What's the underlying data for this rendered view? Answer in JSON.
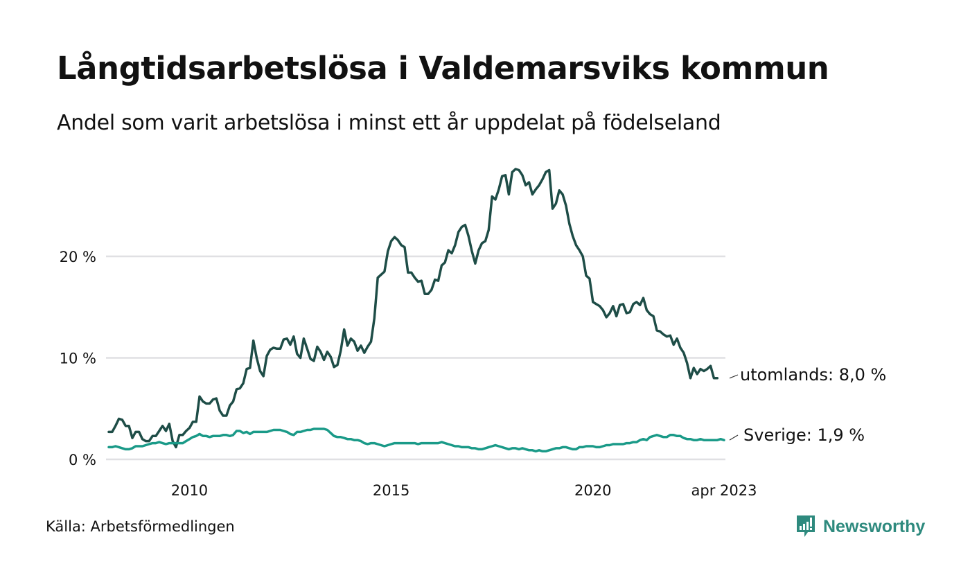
{
  "header": {
    "title": "Långtidsarbetslösa i Valdemarsviks kommun",
    "subtitle": "Andel som varit arbetslösa i minst ett år uppdelat på födelseland"
  },
  "footer": {
    "source": "Källa: Arbetsförmedlingen",
    "brand": "Newsworthy",
    "brand_icon": "newsworthy-chart-bubble-icon",
    "brand_color": "#2e8a7e"
  },
  "chart_data": {
    "type": "line",
    "title": "Långtidsarbetslösa i Valdemarsviks kommun",
    "subtitle": "Andel som varit arbetslösa i minst ett år uppdelat på födelseland",
    "xlabel": "",
    "ylabel": "",
    "x_start": "2008-01",
    "x_end": "2023-04",
    "x_frequency": "monthly",
    "x_ticks": [
      {
        "label": "2010",
        "value": 2010.0
      },
      {
        "label": "2015",
        "value": 2015.0
      },
      {
        "label": "2020",
        "value": 2020.0
      },
      {
        "label": "apr 2023",
        "value": 2023.25
      }
    ],
    "y_ticks": [
      {
        "label": "0 %",
        "value": 0
      },
      {
        "label": "10 %",
        "value": 10
      },
      {
        "label": "20 %",
        "value": 20
      }
    ],
    "ylim": [
      0,
      29
    ],
    "grid": true,
    "legend": "end-of-line labels (right)",
    "series": [
      {
        "name": "utomlands",
        "end_label": "utomlands: 8,0 %",
        "color": "#1e4d47",
        "values": [
          2.7,
          2.7,
          3.3,
          4.0,
          3.9,
          3.3,
          3.3,
          2.1,
          2.7,
          2.7,
          2.0,
          1.8,
          1.8,
          2.3,
          2.3,
          2.8,
          3.3,
          2.8,
          3.5,
          1.8,
          1.2,
          2.4,
          2.4,
          2.8,
          3.1,
          3.7,
          3.7,
          6.2,
          5.7,
          5.5,
          5.5,
          5.9,
          6.0,
          4.8,
          4.3,
          4.3,
          5.3,
          5.7,
          6.9,
          7.0,
          7.5,
          8.9,
          9.0,
          11.7,
          10.0,
          8.7,
          8.2,
          10.2,
          10.8,
          11.0,
          10.9,
          10.9,
          11.8,
          11.9,
          11.3,
          12.1,
          10.4,
          10.0,
          11.9,
          10.9,
          9.9,
          9.7,
          11.1,
          10.6,
          9.8,
          10.6,
          10.1,
          9.1,
          9.3,
          10.7,
          12.8,
          11.2,
          11.9,
          11.6,
          10.7,
          11.2,
          10.5,
          11.1,
          11.6,
          13.9,
          17.9,
          18.2,
          18.5,
          20.5,
          21.5,
          21.9,
          21.6,
          21.1,
          20.9,
          18.4,
          18.4,
          17.9,
          17.5,
          17.6,
          16.3,
          16.3,
          16.7,
          17.7,
          17.6,
          19.1,
          19.4,
          20.6,
          20.3,
          21.1,
          22.4,
          22.9,
          23.1,
          22.0,
          20.5,
          19.3,
          20.6,
          21.3,
          21.5,
          22.6,
          25.9,
          25.6,
          26.6,
          27.9,
          28.0,
          26.1,
          28.3,
          28.6,
          28.5,
          28.0,
          27.0,
          27.3,
          26.1,
          26.6,
          27.0,
          27.6,
          28.3,
          28.5,
          24.7,
          25.2,
          26.5,
          26.1,
          25.0,
          23.2,
          22.0,
          21.1,
          20.6,
          20.0,
          18.1,
          17.8,
          15.5,
          15.3,
          15.1,
          14.7,
          14.0,
          14.4,
          15.1,
          14.1,
          15.2,
          15.3,
          14.4,
          14.5,
          15.3,
          15.5,
          15.2,
          15.9,
          14.7,
          14.3,
          14.1,
          12.7,
          12.6,
          12.3,
          12.1,
          12.2,
          11.3,
          11.9,
          11.0,
          10.5,
          9.5,
          8.0,
          9.0,
          8.4,
          8.9,
          8.7,
          8.9,
          9.2,
          8.0,
          8.0
        ]
      },
      {
        "name": "Sverige",
        "end_label": "Sverige: 1,9 %",
        "color": "#1a9a88",
        "values": [
          1.2,
          1.2,
          1.3,
          1.2,
          1.1,
          1.0,
          1.0,
          1.1,
          1.3,
          1.3,
          1.3,
          1.4,
          1.5,
          1.6,
          1.6,
          1.7,
          1.6,
          1.5,
          1.6,
          1.6,
          1.6,
          1.6,
          1.6,
          1.8,
          2.0,
          2.2,
          2.3,
          2.5,
          2.3,
          2.3,
          2.2,
          2.3,
          2.3,
          2.3,
          2.4,
          2.4,
          2.3,
          2.4,
          2.8,
          2.8,
          2.6,
          2.7,
          2.5,
          2.7,
          2.7,
          2.7,
          2.7,
          2.7,
          2.8,
          2.9,
          2.9,
          2.9,
          2.8,
          2.7,
          2.5,
          2.4,
          2.7,
          2.7,
          2.8,
          2.9,
          2.9,
          3.0,
          3.0,
          3.0,
          3.0,
          2.9,
          2.6,
          2.3,
          2.2,
          2.2,
          2.1,
          2.0,
          2.0,
          1.9,
          1.9,
          1.8,
          1.6,
          1.5,
          1.6,
          1.6,
          1.5,
          1.4,
          1.3,
          1.4,
          1.5,
          1.6,
          1.6,
          1.6,
          1.6,
          1.6,
          1.6,
          1.6,
          1.5,
          1.6,
          1.6,
          1.6,
          1.6,
          1.6,
          1.6,
          1.7,
          1.6,
          1.5,
          1.4,
          1.3,
          1.3,
          1.2,
          1.2,
          1.2,
          1.1,
          1.1,
          1.0,
          1.0,
          1.1,
          1.2,
          1.3,
          1.4,
          1.3,
          1.2,
          1.1,
          1.0,
          1.1,
          1.1,
          1.0,
          1.1,
          1.0,
          0.9,
          0.9,
          0.8,
          0.9,
          0.8,
          0.8,
          0.9,
          1.0,
          1.1,
          1.1,
          1.2,
          1.2,
          1.1,
          1.0,
          1.0,
          1.2,
          1.2,
          1.3,
          1.3,
          1.3,
          1.2,
          1.2,
          1.3,
          1.4,
          1.4,
          1.5,
          1.5,
          1.5,
          1.5,
          1.6,
          1.6,
          1.7,
          1.7,
          1.9,
          2.0,
          1.9,
          2.2,
          2.3,
          2.4,
          2.3,
          2.2,
          2.2,
          2.4,
          2.4,
          2.3,
          2.3,
          2.1,
          2.0,
          2.0,
          1.9,
          1.9,
          2.0,
          1.9,
          1.9,
          1.9,
          1.9,
          1.9,
          2.0,
          1.9
        ]
      }
    ]
  }
}
